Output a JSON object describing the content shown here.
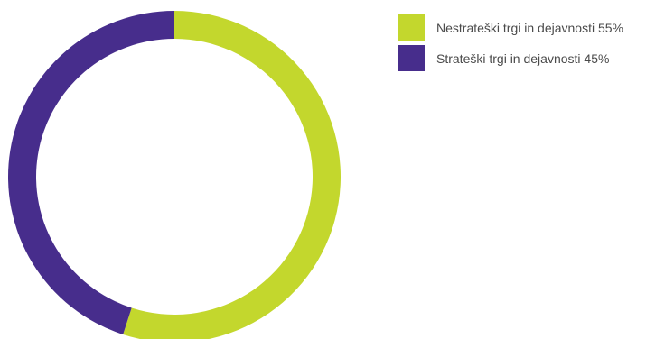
{
  "chart_data": {
    "type": "pie",
    "variant": "donut",
    "legend_position": "top-right",
    "slices": [
      {
        "label": "Nestrateški trgi in dejavnosti 55%",
        "value": 55,
        "color": "#c3d72d"
      },
      {
        "label": "Strateški trgi in dejavnosti 45%",
        "value": 45,
        "color": "#472d8c"
      }
    ]
  }
}
